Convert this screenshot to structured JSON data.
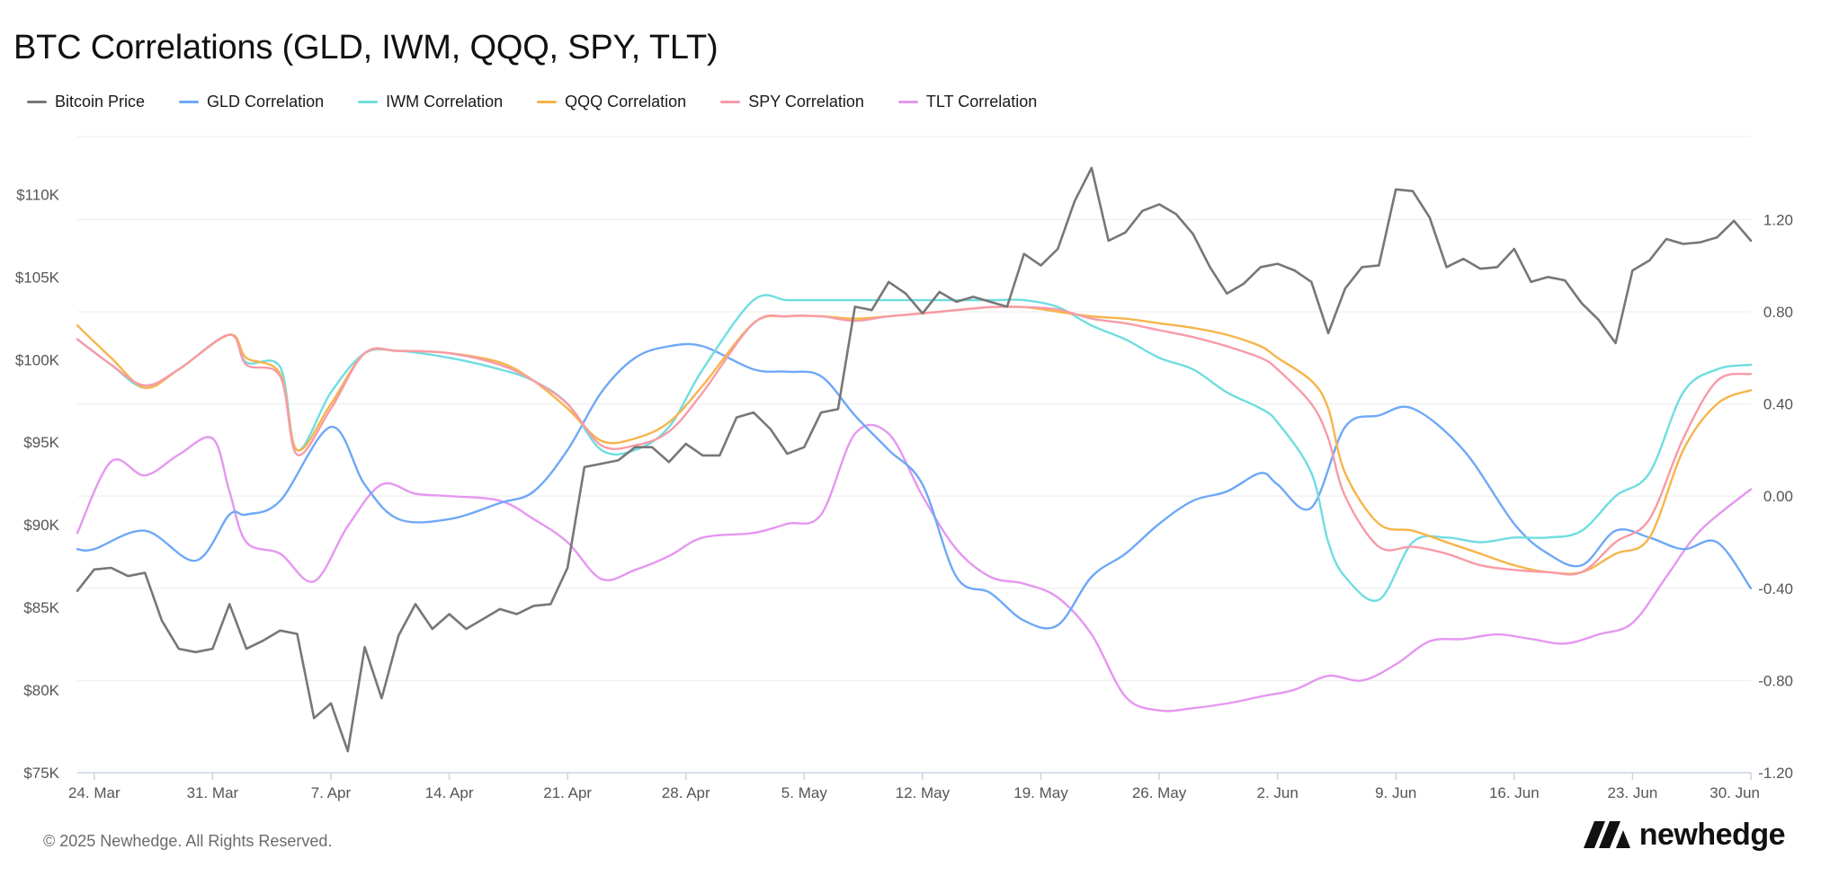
{
  "page": {
    "title": "BTC Correlations (GLD, IWM, QQQ, SPY, TLT)",
    "footer": "© 2025 Newhedge. All Rights Reserved.",
    "brand": "newhedge"
  },
  "chart_data": {
    "type": "line",
    "title": "BTC Correlations (GLD, IWM, QQQ, SPY, TLT)",
    "legend_position": "top-left",
    "grid": true,
    "x_start": "2025-03-23",
    "x_end": "2025-06-30",
    "x_ticks": [
      "24. Mar",
      "31. Mar",
      "7. Apr",
      "14. Apr",
      "21. Apr",
      "28. Apr",
      "5. May",
      "12. May",
      "19. May",
      "26. May",
      "2. Jun",
      "9. Jun",
      "16. Jun",
      "23. Jun",
      "30. Jun"
    ],
    "y_left": {
      "ticks": [
        "$75K",
        "$80K",
        "$85K",
        "$90K",
        "$95K",
        "$100K",
        "$105K",
        "$110K"
      ],
      "range": [
        75000,
        113500
      ]
    },
    "y_right": {
      "ticks": [
        "-1.20",
        "-0.80",
        "-0.40",
        "0.00",
        "0.40",
        "0.80",
        "1.20"
      ],
      "range": [
        -1.2,
        1.56
      ]
    },
    "series": [
      {
        "name": "Bitcoin Price",
        "color": "#777777",
        "axis": "left",
        "x": [
          "2025-03-23",
          "2025-03-24",
          "2025-03-25",
          "2025-03-26",
          "2025-03-27",
          "2025-03-28",
          "2025-03-29",
          "2025-03-30",
          "2025-03-31",
          "2025-04-01",
          "2025-04-02",
          "2025-04-03",
          "2025-04-04",
          "2025-04-05",
          "2025-04-06",
          "2025-04-07",
          "2025-04-08",
          "2025-04-09",
          "2025-04-10",
          "2025-04-11",
          "2025-04-12",
          "2025-04-13",
          "2025-04-14",
          "2025-04-15",
          "2025-04-16",
          "2025-04-17",
          "2025-04-18",
          "2025-04-19",
          "2025-04-20",
          "2025-04-21",
          "2025-04-22",
          "2025-04-23",
          "2025-04-24",
          "2025-04-25",
          "2025-04-26",
          "2025-04-27",
          "2025-04-28",
          "2025-04-29",
          "2025-04-30",
          "2025-05-01",
          "2025-05-02",
          "2025-05-03",
          "2025-05-04",
          "2025-05-05",
          "2025-05-06",
          "2025-05-07",
          "2025-05-08",
          "2025-05-09",
          "2025-05-10",
          "2025-05-11",
          "2025-05-12",
          "2025-05-13",
          "2025-05-14",
          "2025-05-15",
          "2025-05-16",
          "2025-05-17",
          "2025-05-18",
          "2025-05-19",
          "2025-05-20",
          "2025-05-21",
          "2025-05-22",
          "2025-05-23",
          "2025-05-24",
          "2025-05-25",
          "2025-05-26",
          "2025-05-27",
          "2025-05-28",
          "2025-05-29",
          "2025-05-30",
          "2025-05-31",
          "2025-06-01",
          "2025-06-02",
          "2025-06-03",
          "2025-06-04",
          "2025-06-05",
          "2025-06-06",
          "2025-06-07",
          "2025-06-08",
          "2025-06-09",
          "2025-06-10",
          "2025-06-11",
          "2025-06-12",
          "2025-06-13",
          "2025-06-14",
          "2025-06-15",
          "2025-06-16",
          "2025-06-17",
          "2025-06-18",
          "2025-06-19",
          "2025-06-20",
          "2025-06-21",
          "2025-06-22",
          "2025-06-23",
          "2025-06-24",
          "2025-06-25",
          "2025-06-26",
          "2025-06-27",
          "2025-06-28",
          "2025-06-29",
          "2025-06-30"
        ],
        "values": [
          86000,
          87300,
          87400,
          86900,
          87100,
          84200,
          82500,
          82300,
          82500,
          85200,
          82500,
          83000,
          83600,
          83400,
          78300,
          79200,
          76300,
          82600,
          79500,
          83300,
          85200,
          83700,
          84600,
          83700,
          84300,
          84900,
          84600,
          85100,
          85200,
          87400,
          93500,
          93700,
          93900,
          94700,
          94700,
          93800,
          94900,
          94200,
          94200,
          96500,
          96800,
          95800,
          94300,
          94700,
          96800,
          97000,
          103200,
          103000,
          104700,
          104000,
          102800,
          104100,
          103500,
          103800,
          103500,
          103200,
          106400,
          105700,
          106700,
          109600,
          111600,
          107200,
          107700,
          109000,
          109400,
          108800,
          107600,
          105600,
          104000,
          104600,
          105600,
          105800,
          105400,
          104700,
          101600,
          104300,
          105600,
          105700,
          110300,
          110200,
          108600,
          105600,
          106100,
          105500,
          105600,
          106700,
          104700,
          105000,
          104800,
          103400,
          102400,
          101000,
          105400,
          106000,
          107300,
          107000,
          107100,
          107400,
          108400,
          107200
        ]
      },
      {
        "name": "GLD Correlation",
        "color": "#6ea8f7",
        "axis": "right",
        "x": [
          "2025-03-23",
          "2025-03-24",
          "2025-03-27",
          "2025-03-30",
          "2025-04-01",
          "2025-04-02",
          "2025-04-04",
          "2025-04-07",
          "2025-04-09",
          "2025-04-11",
          "2025-04-14",
          "2025-04-17",
          "2025-04-19",
          "2025-04-21",
          "2025-04-23",
          "2025-04-25",
          "2025-04-27",
          "2025-04-29",
          "2025-05-02",
          "2025-05-04",
          "2025-05-06",
          "2025-05-08",
          "2025-05-10",
          "2025-05-12",
          "2025-05-14",
          "2025-05-16",
          "2025-05-18",
          "2025-05-20",
          "2025-05-22",
          "2025-05-24",
          "2025-05-26",
          "2025-05-28",
          "2025-05-30",
          "2025-06-01",
          "2025-06-02",
          "2025-06-04",
          "2025-06-06",
          "2025-06-08",
          "2025-06-10",
          "2025-06-13",
          "2025-06-16",
          "2025-06-18",
          "2025-06-20",
          "2025-06-22",
          "2025-06-24",
          "2025-06-26",
          "2025-06-28",
          "2025-06-30"
        ],
        "values": [
          -0.23,
          -0.23,
          -0.15,
          -0.28,
          -0.08,
          -0.08,
          -0.02,
          0.3,
          0.05,
          -0.1,
          -0.1,
          -0.03,
          0.02,
          0.2,
          0.45,
          0.6,
          0.65,
          0.65,
          0.55,
          0.54,
          0.52,
          0.35,
          0.2,
          0.05,
          -0.35,
          -0.42,
          -0.54,
          -0.56,
          -0.35,
          -0.25,
          -0.12,
          -0.02,
          0.02,
          0.1,
          0.05,
          -0.05,
          0.3,
          0.35,
          0.38,
          0.2,
          -0.12,
          -0.25,
          -0.3,
          -0.15,
          -0.18,
          -0.23,
          -0.2,
          -0.4
        ]
      },
      {
        "name": "IWM Correlation",
        "color": "#6fdde0",
        "axis": "right",
        "x": [
          "2025-03-23",
          "2025-03-25",
          "2025-03-27",
          "2025-03-29",
          "2025-04-01",
          "2025-04-02",
          "2025-04-04",
          "2025-04-05",
          "2025-04-07",
          "2025-04-09",
          "2025-04-11",
          "2025-04-14",
          "2025-04-17",
          "2025-04-19",
          "2025-04-21",
          "2025-04-23",
          "2025-04-25",
          "2025-04-27",
          "2025-04-29",
          "2025-05-02",
          "2025-05-04",
          "2025-05-06",
          "2025-05-08",
          "2025-05-10",
          "2025-05-13",
          "2025-05-16",
          "2025-05-18",
          "2025-05-20",
          "2025-05-22",
          "2025-05-24",
          "2025-05-26",
          "2025-05-28",
          "2025-05-30",
          "2025-06-01",
          "2025-06-02",
          "2025-06-04",
          "2025-06-05",
          "2025-06-06",
          "2025-06-08",
          "2025-06-10",
          "2025-06-12",
          "2025-06-14",
          "2025-06-16",
          "2025-06-18",
          "2025-06-20",
          "2025-06-22",
          "2025-06-24",
          "2025-06-26",
          "2025-06-28",
          "2025-06-30"
        ],
        "values": [
          0.68,
          0.57,
          0.47,
          0.55,
          0.7,
          0.58,
          0.56,
          0.2,
          0.45,
          0.62,
          0.63,
          0.6,
          0.55,
          0.5,
          0.4,
          0.2,
          0.2,
          0.3,
          0.55,
          0.85,
          0.85,
          0.85,
          0.85,
          0.85,
          0.85,
          0.85,
          0.85,
          0.82,
          0.74,
          0.68,
          0.6,
          0.55,
          0.45,
          0.38,
          0.32,
          0.1,
          -0.2,
          -0.35,
          -0.45,
          -0.2,
          -0.18,
          -0.2,
          -0.18,
          -0.18,
          -0.15,
          0.0,
          0.1,
          0.45,
          0.55,
          0.57
        ]
      },
      {
        "name": "QQQ Correlation",
        "color": "#f7b44a",
        "axis": "right",
        "x": [
          "2025-03-23",
          "2025-03-25",
          "2025-03-27",
          "2025-03-29",
          "2025-04-01",
          "2025-04-02",
          "2025-04-04",
          "2025-04-05",
          "2025-04-07",
          "2025-04-09",
          "2025-04-11",
          "2025-04-14",
          "2025-04-17",
          "2025-04-19",
          "2025-04-21",
          "2025-04-23",
          "2025-04-25",
          "2025-04-27",
          "2025-04-29",
          "2025-05-02",
          "2025-05-04",
          "2025-05-06",
          "2025-05-08",
          "2025-05-10",
          "2025-05-13",
          "2025-05-16",
          "2025-05-18",
          "2025-05-20",
          "2025-05-22",
          "2025-05-24",
          "2025-05-26",
          "2025-05-28",
          "2025-05-30",
          "2025-06-01",
          "2025-06-02",
          "2025-06-04",
          "2025-06-05",
          "2025-06-06",
          "2025-06-08",
          "2025-06-10",
          "2025-06-12",
          "2025-06-14",
          "2025-06-16",
          "2025-06-18",
          "2025-06-20",
          "2025-06-22",
          "2025-06-24",
          "2025-06-26",
          "2025-06-28",
          "2025-06-30"
        ],
        "values": [
          0.74,
          0.6,
          0.47,
          0.55,
          0.7,
          0.6,
          0.53,
          0.2,
          0.4,
          0.62,
          0.63,
          0.62,
          0.58,
          0.5,
          0.38,
          0.24,
          0.25,
          0.32,
          0.48,
          0.75,
          0.78,
          0.78,
          0.77,
          0.78,
          0.8,
          0.82,
          0.82,
          0.8,
          0.78,
          0.77,
          0.75,
          0.73,
          0.7,
          0.65,
          0.6,
          0.5,
          0.38,
          0.1,
          -0.12,
          -0.15,
          -0.2,
          -0.25,
          -0.3,
          -0.33,
          -0.33,
          -0.25,
          -0.18,
          0.2,
          0.4,
          0.46
        ]
      },
      {
        "name": "SPY Correlation",
        "color": "#f79ba8",
        "axis": "right",
        "x": [
          "2025-03-23",
          "2025-03-25",
          "2025-03-27",
          "2025-03-29",
          "2025-04-01",
          "2025-04-02",
          "2025-04-04",
          "2025-04-05",
          "2025-04-07",
          "2025-04-09",
          "2025-04-11",
          "2025-04-14",
          "2025-04-17",
          "2025-04-19",
          "2025-04-21",
          "2025-04-23",
          "2025-04-25",
          "2025-04-27",
          "2025-04-29",
          "2025-05-02",
          "2025-05-04",
          "2025-05-06",
          "2025-05-08",
          "2025-05-10",
          "2025-05-13",
          "2025-05-16",
          "2025-05-18",
          "2025-05-20",
          "2025-05-22",
          "2025-05-24",
          "2025-05-26",
          "2025-05-28",
          "2025-05-30",
          "2025-06-01",
          "2025-06-02",
          "2025-06-04",
          "2025-06-05",
          "2025-06-06",
          "2025-06-08",
          "2025-06-10",
          "2025-06-12",
          "2025-06-14",
          "2025-06-16",
          "2025-06-18",
          "2025-06-20",
          "2025-06-22",
          "2025-06-24",
          "2025-06-26",
          "2025-06-28",
          "2025-06-30"
        ],
        "values": [
          0.68,
          0.57,
          0.48,
          0.55,
          0.7,
          0.57,
          0.52,
          0.18,
          0.38,
          0.62,
          0.63,
          0.62,
          0.57,
          0.5,
          0.4,
          0.22,
          0.22,
          0.28,
          0.45,
          0.75,
          0.78,
          0.78,
          0.76,
          0.78,
          0.8,
          0.82,
          0.82,
          0.81,
          0.77,
          0.75,
          0.72,
          0.69,
          0.65,
          0.6,
          0.55,
          0.4,
          0.25,
          0.0,
          -0.22,
          -0.22,
          -0.25,
          -0.3,
          -0.32,
          -0.33,
          -0.33,
          -0.2,
          -0.1,
          0.25,
          0.5,
          0.53
        ]
      },
      {
        "name": "TLT Correlation",
        "color": "#e597f0",
        "axis": "right",
        "x": [
          "2025-03-23",
          "2025-03-25",
          "2025-03-27",
          "2025-03-29",
          "2025-03-31",
          "2025-04-01",
          "2025-04-02",
          "2025-04-04",
          "2025-04-06",
          "2025-04-08",
          "2025-04-10",
          "2025-04-12",
          "2025-04-14",
          "2025-04-17",
          "2025-04-19",
          "2025-04-21",
          "2025-04-23",
          "2025-04-25",
          "2025-04-27",
          "2025-04-29",
          "2025-05-02",
          "2025-05-04",
          "2025-05-06",
          "2025-05-08",
          "2025-05-10",
          "2025-05-12",
          "2025-05-14",
          "2025-05-16",
          "2025-05-18",
          "2025-05-20",
          "2025-05-22",
          "2025-05-24",
          "2025-05-26",
          "2025-05-28",
          "2025-05-30",
          "2025-06-01",
          "2025-06-03",
          "2025-06-05",
          "2025-06-07",
          "2025-06-09",
          "2025-06-11",
          "2025-06-13",
          "2025-06-15",
          "2025-06-17",
          "2025-06-19",
          "2025-06-21",
          "2025-06-23",
          "2025-06-25",
          "2025-06-27",
          "2025-06-30"
        ],
        "values": [
          -0.16,
          0.15,
          0.09,
          0.18,
          0.25,
          0.02,
          -0.2,
          -0.25,
          -0.37,
          -0.13,
          0.05,
          0.01,
          0.0,
          -0.02,
          -0.1,
          -0.2,
          -0.36,
          -0.32,
          -0.26,
          -0.18,
          -0.16,
          -0.12,
          -0.08,
          0.27,
          0.27,
          0.0,
          -0.23,
          -0.35,
          -0.38,
          -0.44,
          -0.6,
          -0.87,
          -0.93,
          -0.92,
          -0.9,
          -0.87,
          -0.84,
          -0.78,
          -0.8,
          -0.73,
          -0.63,
          -0.62,
          -0.6,
          -0.62,
          -0.64,
          -0.6,
          -0.55,
          -0.35,
          -0.15,
          0.03
        ]
      }
    ]
  }
}
